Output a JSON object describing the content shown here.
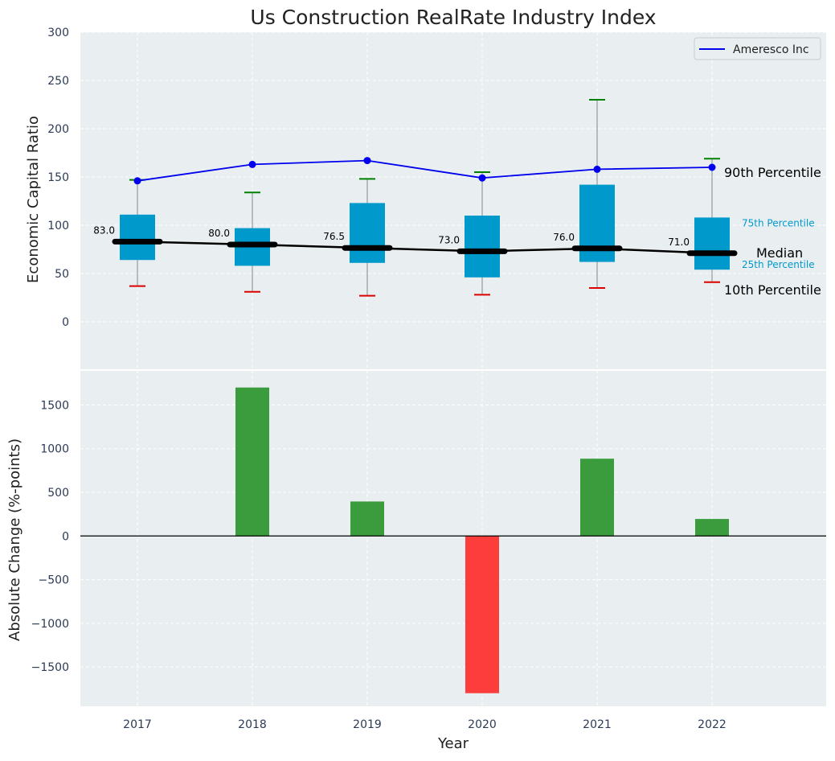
{
  "chart_data": [
    {
      "type": "box",
      "title": "Us Construction RealRate Industry Index",
      "ylabel": "Economic Capital Ratio",
      "xlabel": "",
      "ylim": [
        -50,
        300
      ],
      "yticks": [
        0,
        50,
        100,
        150,
        200,
        250,
        300
      ],
      "categories": [
        "2017",
        "2018",
        "2019",
        "2020",
        "2021",
        "2022"
      ],
      "grid": true,
      "legend": {
        "placement": "top-right",
        "entries": [
          "Ameresco Inc"
        ]
      },
      "boxes": [
        {
          "year": "2017",
          "p10": 37,
          "q1": 64,
          "median": 83.0,
          "q3": 111,
          "p90": 147
        },
        {
          "year": "2018",
          "p10": 31,
          "q1": 58,
          "median": 80.0,
          "q3": 97,
          "p90": 134
        },
        {
          "year": "2019",
          "p10": 27,
          "q1": 61,
          "median": 76.5,
          "q3": 123,
          "p90": 148
        },
        {
          "year": "2020",
          "p10": 28,
          "q1": 46,
          "median": 73.0,
          "q3": 110,
          "p90": 155
        },
        {
          "year": "2021",
          "p10": 35,
          "q1": 62,
          "median": 76.0,
          "q3": 142,
          "p90": 230
        },
        {
          "year": "2022",
          "p10": 41,
          "q1": 54,
          "median": 71.0,
          "q3": 108,
          "p90": 169
        }
      ],
      "median_labels": [
        "83.0",
        "80.0",
        "76.5",
        "73.0",
        "76.0",
        "71.0"
      ],
      "series": [
        {
          "name": "Ameresco Inc",
          "values": [
            146,
            163,
            167,
            149,
            158,
            160
          ],
          "color": "#0000ee"
        }
      ],
      "annotations": {
        "p90": "90th Percentile",
        "p75": "75th Percentile",
        "median": "Median",
        "p25": "25th Percentile",
        "p10": "10th Percentile"
      },
      "colors": {
        "box": "#0099cc",
        "median_line": "#000000",
        "whisker_top": "#008000",
        "whisker_bottom": "#dd0000",
        "background": "#e9eef0"
      }
    },
    {
      "type": "bar",
      "ylabel": "Absolute Change (%-points)",
      "xlabel": "Year",
      "categories": [
        "2017",
        "2018",
        "2019",
        "2020",
        "2021",
        "2022"
      ],
      "values": [
        0,
        1700,
        395,
        -1800,
        885,
        195
      ],
      "ylim": [
        -1950,
        1900
      ],
      "yticks": [
        -1500,
        -1000,
        -500,
        0,
        500,
        1000,
        1500
      ],
      "ytick_labels": [
        "−1500",
        "−1000",
        "−500",
        "0",
        "500",
        "1000",
        "1500"
      ],
      "grid": true,
      "colors": {
        "positive": "#3a9c3c",
        "negative": "#fd3c3c"
      }
    }
  ]
}
